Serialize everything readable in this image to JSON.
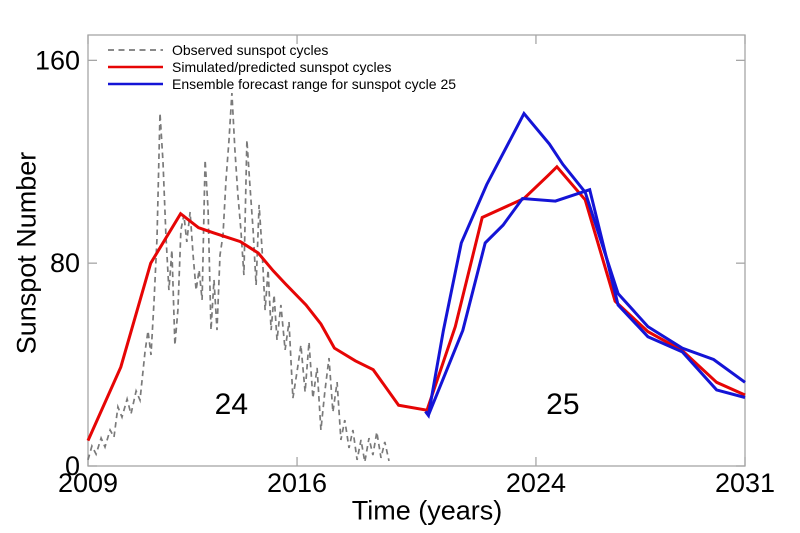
{
  "canvas": {
    "background": "#ffffff"
  },
  "chart_data": {
    "type": "line",
    "title": "",
    "xlabel": "Time (years)",
    "ylabel": "Sunspot Number",
    "xlim": [
      2009,
      2031
    ],
    "ylim": [
      0,
      170
    ],
    "xticks": [
      2009,
      2016,
      2024,
      2031
    ],
    "yticks": [
      0,
      80,
      160
    ],
    "grid": false,
    "frame_color": "#a6a6a6",
    "text_color": "#000000",
    "legend": {
      "position": "top-left-inside",
      "items": [
        {
          "label": "Observed sunspot cycles",
          "color": "#7a7a7a",
          "dashed": true
        },
        {
          "label": "Simulated/predicted sunspot cycles",
          "color": "#e60505",
          "dashed": false
        },
        {
          "label": "Ensemble forecast range for sunspot cycle 25",
          "color": "#1414d6",
          "dashed": false
        }
      ]
    },
    "annotations": [
      {
        "text": "24",
        "x": 2013.8,
        "y": 24.5,
        "color": "#1a1aee"
      },
      {
        "text": "25",
        "x": 2024.9,
        "y": 24.5,
        "color": "#1a1aee"
      }
    ],
    "series": [
      {
        "name": "Observed sunspot cycles",
        "role": "observed",
        "style": "dashed",
        "color": "#7a7a7a",
        "width": 1.7,
        "points": [
          [
            2009.0,
            2.4
          ],
          [
            2009.13,
            7.9
          ],
          [
            2009.27,
            4.7
          ],
          [
            2009.44,
            11.0
          ],
          [
            2009.57,
            7.5
          ],
          [
            2009.74,
            14.2
          ],
          [
            2009.87,
            11.4
          ],
          [
            2010.0,
            23.3
          ],
          [
            2010.14,
            19.3
          ],
          [
            2010.31,
            26.4
          ],
          [
            2010.44,
            20.5
          ],
          [
            2010.61,
            29.6
          ],
          [
            2010.74,
            26.0
          ],
          [
            2010.91,
            45.0
          ],
          [
            2011.01,
            53.3
          ],
          [
            2011.11,
            43.8
          ],
          [
            2011.21,
            64.7
          ],
          [
            2011.31,
            89.9
          ],
          [
            2011.41,
            139.2
          ],
          [
            2011.51,
            119.9
          ],
          [
            2011.61,
            91.1
          ],
          [
            2011.71,
            69.4
          ],
          [
            2011.81,
            85.2
          ],
          [
            2011.91,
            47.7
          ],
          [
            2012.01,
            61.5
          ],
          [
            2012.11,
            93.1
          ],
          [
            2012.21,
            99.0
          ],
          [
            2012.31,
            88.4
          ],
          [
            2012.42,
            100.2
          ],
          [
            2012.52,
            83.2
          ],
          [
            2012.62,
            69.4
          ],
          [
            2012.72,
            77.3
          ],
          [
            2012.82,
            65.5
          ],
          [
            2012.92,
            120.7
          ],
          [
            2013.02,
            101.0
          ],
          [
            2013.12,
            53.6
          ],
          [
            2013.22,
            73.4
          ],
          [
            2013.32,
            53.6
          ],
          [
            2013.42,
            83.2
          ],
          [
            2013.52,
            91.1
          ],
          [
            2013.62,
            112.8
          ],
          [
            2013.72,
            128.6
          ],
          [
            2013.82,
            147.1
          ],
          [
            2013.92,
            124.7
          ],
          [
            2014.02,
            106.9
          ],
          [
            2014.12,
            93.1
          ],
          [
            2014.22,
            75.3
          ],
          [
            2014.32,
            128.6
          ],
          [
            2014.42,
            110.8
          ],
          [
            2014.53,
            93.1
          ],
          [
            2014.63,
            71.4
          ],
          [
            2014.73,
            103.0
          ],
          [
            2014.83,
            85.2
          ],
          [
            2014.93,
            61.5
          ],
          [
            2015.03,
            77.3
          ],
          [
            2015.13,
            53.6
          ],
          [
            2015.23,
            67.5
          ],
          [
            2015.33,
            49.7
          ],
          [
            2015.46,
            63.5
          ],
          [
            2015.6,
            45.8
          ],
          [
            2015.73,
            56.8
          ],
          [
            2015.86,
            26.8
          ],
          [
            2016.0,
            37.1
          ],
          [
            2016.13,
            47.7
          ],
          [
            2016.27,
            29.2
          ],
          [
            2016.4,
            48.9
          ],
          [
            2016.53,
            26.8
          ],
          [
            2016.67,
            38.7
          ],
          [
            2016.8,
            14.2
          ],
          [
            2016.93,
            29.2
          ],
          [
            2017.07,
            42.6
          ],
          [
            2017.2,
            21.3
          ],
          [
            2017.34,
            33.1
          ],
          [
            2017.47,
            10.3
          ],
          [
            2017.6,
            18.1
          ],
          [
            2017.74,
            7.1
          ],
          [
            2017.87,
            14.2
          ],
          [
            2018.01,
            2.4
          ],
          [
            2018.14,
            10.3
          ],
          [
            2018.27,
            1.6
          ],
          [
            2018.41,
            11.0
          ],
          [
            2018.54,
            4.3
          ],
          [
            2018.67,
            13.4
          ],
          [
            2018.81,
            3.2
          ],
          [
            2018.94,
            9.5
          ],
          [
            2019.08,
            2.0
          ]
        ]
      },
      {
        "name": "Simulated/predicted sunspot cycles",
        "role": "predicted",
        "style": "solid",
        "color": "#e60505",
        "width": 3,
        "points": [
          [
            2009.0,
            10
          ],
          [
            2010.1,
            39
          ],
          [
            2011.1,
            80
          ],
          [
            2012.1,
            99.5
          ],
          [
            2012.7,
            94
          ],
          [
            2013.2,
            92
          ],
          [
            2014.1,
            88.5
          ],
          [
            2014.7,
            84
          ],
          [
            2015.2,
            77
          ],
          [
            2015.6,
            72
          ],
          [
            2016.3,
            63.5
          ],
          [
            2016.8,
            56
          ],
          [
            2017.25,
            46.5
          ],
          [
            2017.95,
            41.5
          ],
          [
            2018.55,
            38
          ],
          [
            2019.4,
            24
          ],
          [
            2020.35,
            22
          ],
          [
            2021.3,
            55
          ],
          [
            2022.2,
            98
          ],
          [
            2023.6,
            105.5
          ],
          [
            2024.4,
            114.5
          ],
          [
            2024.7,
            118
          ],
          [
            2025.65,
            105
          ],
          [
            2026.65,
            65
          ],
          [
            2027.75,
            53
          ],
          [
            2028.9,
            45.5
          ],
          [
            2030.05,
            33
          ],
          [
            2031.0,
            28
          ]
        ]
      },
      {
        "name": "Ensemble forecast range for sunspot cycle 25 (lower bound)",
        "role": "ensemble-lower",
        "style": "solid",
        "color": "#1414d6",
        "width": 3,
        "points": [
          [
            2020.3,
            21.5
          ],
          [
            2020.4,
            20
          ],
          [
            2021.55,
            53.5
          ],
          [
            2022.3,
            88
          ],
          [
            2022.9,
            95
          ],
          [
            2023.55,
            105.5
          ],
          [
            2024.65,
            104.5
          ],
          [
            2025.8,
            109
          ],
          [
            2026.75,
            63.5
          ],
          [
            2027.75,
            51
          ],
          [
            2028.9,
            45
          ],
          [
            2030.05,
            30
          ],
          [
            2031.0,
            27
          ]
        ]
      },
      {
        "name": "Ensemble forecast range for sunspot cycle 25 (upper bound)",
        "role": "ensemble-upper",
        "style": "solid",
        "color": "#1414d6",
        "width": 3,
        "points": [
          [
            2020.3,
            21.5
          ],
          [
            2020.4,
            20
          ],
          [
            2020.9,
            53.5
          ],
          [
            2021.5,
            88
          ],
          [
            2022.35,
            111
          ],
          [
            2023.6,
            139
          ],
          [
            2024.45,
            127
          ],
          [
            2024.9,
            119
          ],
          [
            2025.65,
            108
          ],
          [
            2026.75,
            68
          ],
          [
            2027.75,
            55
          ],
          [
            2028.9,
            46.5
          ],
          [
            2029.95,
            42
          ],
          [
            2031.0,
            33
          ]
        ]
      }
    ]
  }
}
